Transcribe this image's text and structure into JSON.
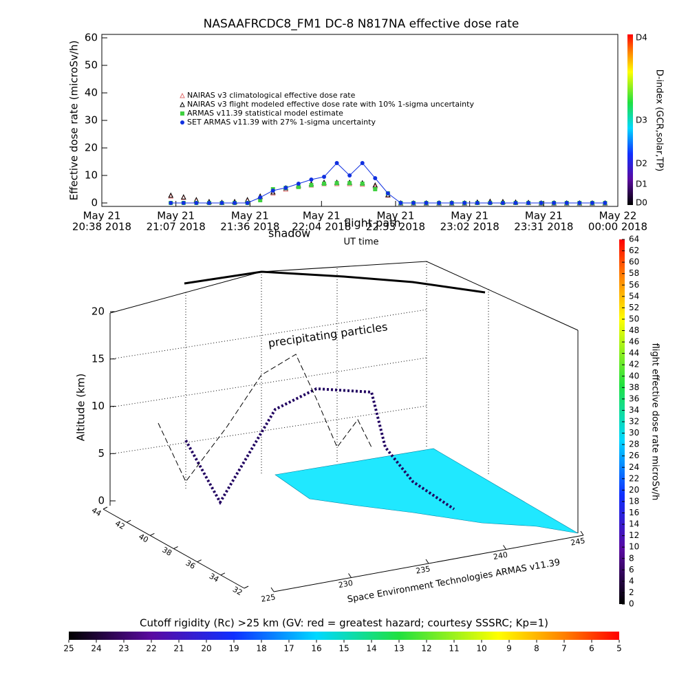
{
  "chart_data": [
    {
      "type": "line",
      "title": "NASAAFRCDC8_FM1 DC-8   N817NA effective dose rate",
      "ylabel": "Effective dose rate (microSv/h)",
      "xlabel": "UT time",
      "x": [
        "2018-05-21T21:05",
        "2018-05-21T21:10",
        "2018-05-21T21:15",
        "2018-05-21T21:20",
        "2018-05-21T21:25",
        "2018-05-21T21:30",
        "2018-05-21T21:35",
        "2018-05-21T21:40",
        "2018-05-21T21:45",
        "2018-05-21T21:50",
        "2018-05-21T21:55",
        "2018-05-21T22:00",
        "2018-05-21T22:05",
        "2018-05-21T22:10",
        "2018-05-21T22:15",
        "2018-05-21T22:20",
        "2018-05-21T22:25",
        "2018-05-21T22:30",
        "2018-05-21T22:35",
        "2018-05-21T22:40",
        "2018-05-21T22:45",
        "2018-05-21T22:50",
        "2018-05-21T22:55",
        "2018-05-21T23:00",
        "2018-05-21T23:05",
        "2018-05-21T23:10",
        "2018-05-21T23:15",
        "2018-05-21T23:20",
        "2018-05-21T23:25",
        "2018-05-21T23:30",
        "2018-05-21T23:35",
        "2018-05-21T23:40",
        "2018-05-21T23:45",
        "2018-05-21T23:50",
        "2018-05-21T23:55"
      ],
      "series": [
        {
          "name": "NAIRAS v3 climatological effective dose rate",
          "color": "#e07070",
          "marker": "triangle",
          "values": [
            2.5,
            2,
            1,
            0.4,
            0.2,
            0.4,
            1,
            2.2,
            3.6,
            5,
            6,
            6.5,
            7,
            7,
            7,
            6.8,
            6,
            2.8,
            0,
            0,
            0,
            0,
            0,
            0,
            0.2,
            0.5,
            0.4,
            0.2,
            0.1,
            0,
            0,
            0,
            0,
            0,
            0
          ]
        },
        {
          "name": "NAIRAS v3 flight modeled effective dose rate with 10% 1-sigma uncertainty",
          "color": "#000000",
          "marker": "triangle",
          "values": [
            2.8,
            2.2,
            1.2,
            0.5,
            0.2,
            0.5,
            1.2,
            2.5,
            4,
            5.5,
            6.5,
            7,
            7.5,
            7.5,
            7.5,
            7.3,
            6.5,
            3,
            0,
            0,
            0,
            0,
            0,
            0,
            0.3,
            0.6,
            0.5,
            0.3,
            0.2,
            0,
            0,
            0,
            0,
            0,
            0
          ]
        },
        {
          "name": "ARMAS v11.39 statistical model estimate",
          "color": "#40d040",
          "marker": "square",
          "values": [
            0,
            0,
            0,
            0,
            0,
            0,
            0,
            1,
            5,
            5.5,
            5.8,
            6.5,
            7,
            7.2,
            7.2,
            7,
            5,
            3.5,
            0,
            0,
            0,
            0,
            0,
            0,
            0,
            0,
            0,
            0,
            0,
            0,
            0,
            0,
            0,
            0,
            0
          ]
        },
        {
          "name": "SET ARMAS v11.39 with 27% 1-sigma uncertainty",
          "color": "#1030e0",
          "marker": "circle",
          "values": [
            0,
            0,
            0,
            0,
            0,
            0,
            0,
            2,
            4.5,
            5.5,
            7,
            8.5,
            9.5,
            14.5,
            10,
            14.5,
            9,
            3.5,
            0,
            0,
            0,
            0,
            0,
            0,
            0,
            0,
            0,
            0,
            0,
            0,
            0,
            0,
            0,
            0,
            0
          ]
        }
      ],
      "xlim": [
        "2018-05-21T20:38",
        "2018-05-22T00:00"
      ],
      "xticks": [
        {
          "value": "2018-05-21T20:38",
          "label": [
            "May 21",
            "20:38 2018"
          ]
        },
        {
          "value": "2018-05-21T21:07",
          "label": [
            "May 21",
            "21:07 2018"
          ]
        },
        {
          "value": "2018-05-21T21:36",
          "label": [
            "May 21",
            "21:36 2018"
          ]
        },
        {
          "value": "2018-05-21T22:04",
          "label": [
            "May 21",
            "22:04 2018"
          ]
        },
        {
          "value": "2018-05-21T22:33",
          "label": [
            "May 21",
            "22:33 2018"
          ]
        },
        {
          "value": "2018-05-21T23:02",
          "label": [
            "May 21",
            "23:02 2018"
          ]
        },
        {
          "value": "2018-05-21T23:31",
          "label": [
            "May 21",
            "23:31 2018"
          ]
        },
        {
          "value": "2018-05-22T00:00",
          "label": [
            "May 22",
            "00:00 2018"
          ]
        }
      ],
      "ylim": [
        0,
        60
      ],
      "yticks": [
        0,
        10,
        20,
        30,
        40,
        50,
        60
      ],
      "colorbar": {
        "label": "D-index (GCR,solar,TP)",
        "ticks": [
          "D0",
          "D1",
          "D2",
          "D3",
          "D4"
        ]
      }
    },
    {
      "type": "surface3d",
      "zlabel": "Altitude (km)",
      "zlim": [
        0,
        20
      ],
      "zticks": [
        0,
        5,
        10,
        15,
        20
      ],
      "latlim": [
        32,
        44
      ],
      "latticks": [
        32,
        34,
        36,
        38,
        40,
        42,
        44
      ],
      "lonlim": [
        225,
        245
      ],
      "lonticks": [
        225,
        230,
        235,
        240,
        245
      ],
      "annotations": [
        "precipitating particles",
        "shadow",
        "flight path"
      ],
      "credit": "Space Environment Technologies ARMAS v11.39",
      "colorbar": {
        "label": "flight effective dose rate microSv/h",
        "lim": [
          0,
          64
        ],
        "ticks": [
          0,
          2,
          4,
          6,
          8,
          10,
          12,
          14,
          16,
          18,
          20,
          22,
          24,
          26,
          28,
          30,
          32,
          34,
          36,
          38,
          40,
          42,
          44,
          46,
          48,
          50,
          52,
          54,
          56,
          58,
          60,
          62,
          64
        ]
      },
      "rigidity_bar": {
        "label": "Cutoff rigidity (Rc) >25 km (GV: red = greatest hazard; courtesy SSSRC; Kp=1)",
        "lim": [
          25,
          5
        ],
        "ticks": [
          25,
          24,
          23,
          22,
          21,
          20,
          19,
          18,
          17,
          16,
          15,
          14,
          13,
          12,
          11,
          10,
          9,
          8,
          7,
          6,
          5
        ]
      }
    }
  ]
}
